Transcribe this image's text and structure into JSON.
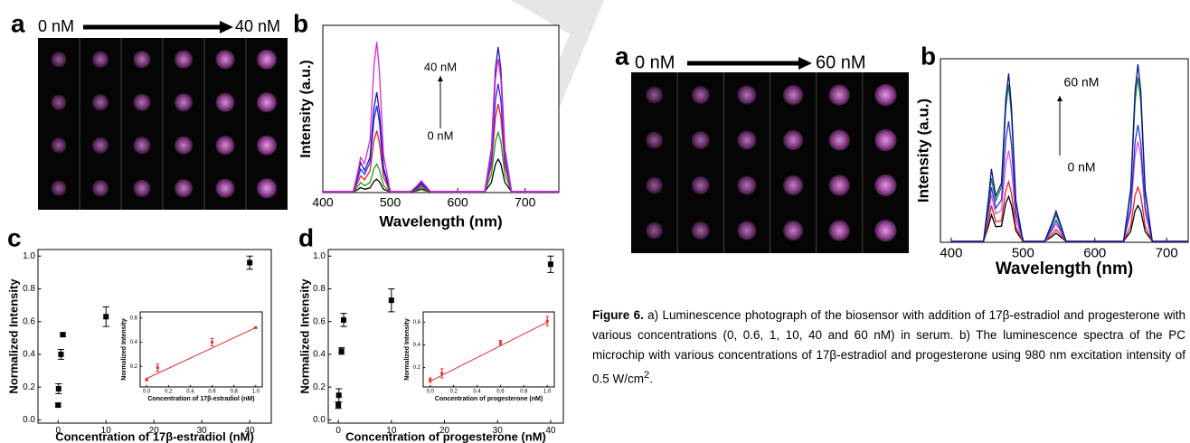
{
  "left_figure": {
    "panel_labels": [
      "a",
      "b",
      "c",
      "d"
    ],
    "photo_range": {
      "start": "0 nM",
      "end": "40 nM"
    }
  },
  "right_figure": {
    "panel_labels": [
      "a",
      "b"
    ],
    "photo_range": {
      "start": "0 nM",
      "end": "60 nM"
    }
  },
  "chart_data": [
    {
      "type": "line",
      "x_label": "Wavelength (nm)",
      "y_label": "Intensity (a.u.)",
      "annotations": {
        "top": "40 nM",
        "bottom": "0 nM"
      },
      "x": [
        400,
        445,
        452,
        456,
        462,
        470,
        476,
        480,
        484,
        490,
        500,
        530,
        540,
        546,
        552,
        560,
        640,
        650,
        656,
        660,
        664,
        670,
        680,
        750
      ],
      "xlim": [
        400,
        750
      ],
      "xticks": [
        400,
        500,
        600,
        700
      ],
      "ylim": [
        0,
        1
      ],
      "series": [
        {
          "color": "#000000",
          "values": [
            0.005,
            0.005,
            0.018,
            0.03,
            0.02,
            0.028,
            0.068,
            0.08,
            0.064,
            0.02,
            0.005,
            0.005,
            0.012,
            0.02,
            0.012,
            0.005,
            0.005,
            0.06,
            0.17,
            0.2,
            0.17,
            0.06,
            0.005,
            0.005
          ]
        },
        {
          "color": "#1a9a1a",
          "values": [
            0.005,
            0.005,
            0.036,
            0.06,
            0.041,
            0.06,
            0.145,
            0.17,
            0.136,
            0.043,
            0.005,
            0.005,
            0.018,
            0.03,
            0.018,
            0.005,
            0.005,
            0.108,
            0.306,
            0.36,
            0.306,
            0.108,
            0.005,
            0.005
          ]
        },
        {
          "color": "#e02020",
          "values": [
            0.005,
            0.005,
            0.06,
            0.1,
            0.077,
            0.13,
            0.315,
            0.37,
            0.296,
            0.093,
            0.005,
            0.005,
            0.024,
            0.04,
            0.024,
            0.005,
            0.005,
            0.159,
            0.451,
            0.53,
            0.451,
            0.159,
            0.005,
            0.005
          ]
        },
        {
          "color": "#2828ff",
          "values": [
            0.005,
            0.005,
            0.084,
            0.14,
            0.108,
            0.182,
            0.442,
            0.52,
            0.416,
            0.13,
            0.005,
            0.005,
            0.03,
            0.05,
            0.03,
            0.005,
            0.005,
            0.195,
            0.553,
            0.65,
            0.553,
            0.195,
            0.005,
            0.005
          ]
        },
        {
          "color": "#1a1aa0",
          "values": [
            0.005,
            0.005,
            0.108,
            0.18,
            0.132,
            0.21,
            0.51,
            0.6,
            0.48,
            0.15,
            0.005,
            0.005,
            0.036,
            0.06,
            0.036,
            0.005,
            0.005,
            0.261,
            0.74,
            0.87,
            0.74,
            0.261,
            0.005,
            0.005
          ]
        },
        {
          "color": "#e020e0",
          "values": [
            0.005,
            0.005,
            0.126,
            0.21,
            0.174,
            0.315,
            0.765,
            0.9,
            0.72,
            0.225,
            0.005,
            0.005,
            0.042,
            0.07,
            0.042,
            0.005,
            0.005,
            0.24,
            0.68,
            0.8,
            0.68,
            0.24,
            0.005,
            0.005
          ]
        }
      ]
    },
    {
      "type": "scatter",
      "x_label": "Concentration of 17β-estradiol (nM)",
      "y_label": "Normalized Intensity",
      "x": [
        0,
        0.1,
        0.6,
        1,
        10,
        40
      ],
      "xlim": [
        -4.2,
        44.5
      ],
      "xticks": [
        0,
        10,
        20,
        30,
        40
      ],
      "ylim": [
        -0.02,
        1.04
      ],
      "yticks": [
        {
          "value": 0,
          "label": "0.0"
        },
        0.2,
        0.4,
        0.6,
        0.8,
        {
          "value": 1,
          "label": "1.0"
        }
      ],
      "series": [
        {
          "color": "#000000",
          "values": [
            0.09,
            0.19,
            0.4,
            0.52,
            0.63,
            0.96
          ],
          "errors": [
            0.01,
            0.03,
            0.03,
            0.01,
            0.06,
            0.04
          ]
        }
      ]
    },
    {
      "type": "scatter",
      "x_label": "Concentration of 17β-estradiol (nM)",
      "y_label": "Normalized Intensity",
      "x": [
        0,
        0.1,
        0.6,
        1
      ],
      "xlim": [
        -0.06,
        1.06
      ],
      "xticks": [
        {
          "value": 0,
          "label": "0.0"
        },
        0.2,
        0.4,
        0.6,
        0.8,
        {
          "value": 1,
          "label": "1.0"
        }
      ],
      "ylim": [
        0.03,
        0.65
      ],
      "yticks": [
        0.2,
        0.4,
        0.6
      ],
      "series": [
        {
          "color": "#e03030",
          "values": [
            0.09,
            0.19,
            0.4,
            0.52
          ],
          "errors": [
            0.01,
            0.03,
            0.03,
            0.005
          ]
        }
      ],
      "fit": {
        "x": [
          0,
          1
        ],
        "values": [
          0.1,
          0.52
        ],
        "color": "#e03030"
      }
    },
    {
      "type": "scatter",
      "x_label": "Concentration of progesterone (nM)",
      "y_label": "Normalized Intensity",
      "x": [
        0,
        0.1,
        0.6,
        1,
        10,
        40
      ],
      "xlim": [
        -1.9,
        42.4
      ],
      "xticks": [
        0,
        10,
        20,
        30,
        40
      ],
      "ylim": [
        -0.02,
        1.04
      ],
      "yticks": [
        {
          "value": 0,
          "label": "0.0"
        },
        0.2,
        0.4,
        0.6,
        0.8,
        {
          "value": 1,
          "label": "1.0"
        }
      ],
      "series": [
        {
          "color": "#000000",
          "values": [
            0.09,
            0.15,
            0.42,
            0.61,
            0.73,
            0.95
          ],
          "errors": [
            0.02,
            0.04,
            0.02,
            0.04,
            0.07,
            0.05
          ]
        }
      ]
    },
    {
      "type": "scatter",
      "x_label": "Concentration of progesterone (nM)",
      "y_label": "Normalized Intensity",
      "x": [
        0,
        0.1,
        0.6,
        1
      ],
      "xlim": [
        -0.06,
        1.06
      ],
      "xticks": [
        {
          "value": 0,
          "label": "0.0"
        },
        0.2,
        0.4,
        0.6,
        0.8,
        {
          "value": 1,
          "label": "1.0"
        }
      ],
      "ylim": [
        0.03,
        0.69
      ],
      "yticks": [
        0.2,
        0.4,
        0.6
      ],
      "series": [
        {
          "color": "#e03030",
          "values": [
            0.09,
            0.15,
            0.42,
            0.61
          ],
          "errors": [
            0.02,
            0.04,
            0.02,
            0.04
          ]
        }
      ],
      "fit": {
        "x": [
          0,
          1
        ],
        "values": [
          0.08,
          0.6
        ],
        "color": "#e03030"
      }
    },
    {
      "type": "line",
      "x_label": "Wavelength (nm)",
      "y_label": "Intensity (a.u.)",
      "annotations": {
        "top": "60 nM",
        "bottom": "0 nM"
      },
      "x": [
        400,
        445,
        452,
        456,
        462,
        470,
        476,
        480,
        484,
        490,
        500,
        530,
        540,
        546,
        552,
        560,
        640,
        650,
        656,
        660,
        664,
        670,
        680,
        730
      ],
      "xlim": [
        385,
        730
      ],
      "xticks": [
        400,
        500,
        600,
        700
      ],
      "ylim": [
        0,
        1
      ],
      "series": [
        {
          "color": "#000000",
          "values": [
            0.005,
            0.005,
            0.09,
            0.15,
            0.085,
            0.088,
            0.213,
            0.25,
            0.2,
            0.063,
            0.005,
            0.005,
            0.03,
            0.05,
            0.03,
            0.005,
            0.005,
            0.06,
            0.17,
            0.2,
            0.17,
            0.06,
            0.005,
            0.005
          ]
        },
        {
          "color": "#e02020",
          "values": [
            0.005,
            0.005,
            0.12,
            0.2,
            0.113,
            0.116,
            0.281,
            0.33,
            0.264,
            0.083,
            0.005,
            0.005,
            0.042,
            0.07,
            0.042,
            0.005,
            0.005,
            0.09,
            0.255,
            0.3,
            0.255,
            0.09,
            0.005,
            0.005
          ]
        },
        {
          "color": "#e050e0",
          "values": [
            0.005,
            0.005,
            0.156,
            0.26,
            0.154,
            0.175,
            0.425,
            0.5,
            0.4,
            0.125,
            0.005,
            0.005,
            0.06,
            0.1,
            0.06,
            0.005,
            0.005,
            0.165,
            0.468,
            0.55,
            0.468,
            0.165,
            0.005,
            0.005
          ]
        },
        {
          "color": "#3030e0",
          "values": [
            0.005,
            0.005,
            0.18,
            0.3,
            0.186,
            0.231,
            0.561,
            0.66,
            0.528,
            0.165,
            0.005,
            0.005,
            0.072,
            0.12,
            0.072,
            0.005,
            0.005,
            0.192,
            0.544,
            0.64,
            0.544,
            0.192,
            0.005,
            0.005
          ]
        },
        {
          "color": "#108040",
          "values": [
            0.005,
            0.005,
            0.21,
            0.35,
            0.226,
            0.301,
            0.731,
            0.86,
            0.688,
            0.215,
            0.005,
            0.005,
            0.09,
            0.15,
            0.09,
            0.005,
            0.005,
            0.27,
            0.765,
            0.9,
            0.765,
            0.27,
            0.005,
            0.005
          ]
        },
        {
          "color": "#101090",
          "values": [
            0.005,
            0.005,
            0.24,
            0.4,
            0.252,
            0.322,
            0.782,
            0.92,
            0.736,
            0.23,
            0.005,
            0.005,
            0.102,
            0.17,
            0.102,
            0.005,
            0.005,
            0.291,
            0.825,
            0.97,
            0.825,
            0.291,
            0.005,
            0.005
          ]
        }
      ]
    }
  ],
  "caption": {
    "label": "Figure 6.",
    "text": " a) Luminescence photograph of the biosensor with addition of 17β-estradiol and progesterone with various concentrations (0, 0.6, 1, 10, 40 and 60 nM) in serum. b) The luminescence spectra of the PC microchip with various concentrations of 17β-estradiol and progesterone using 980 nm excitation intensity of 0.5 W/cm",
    "superscript": "2",
    "end": "."
  }
}
